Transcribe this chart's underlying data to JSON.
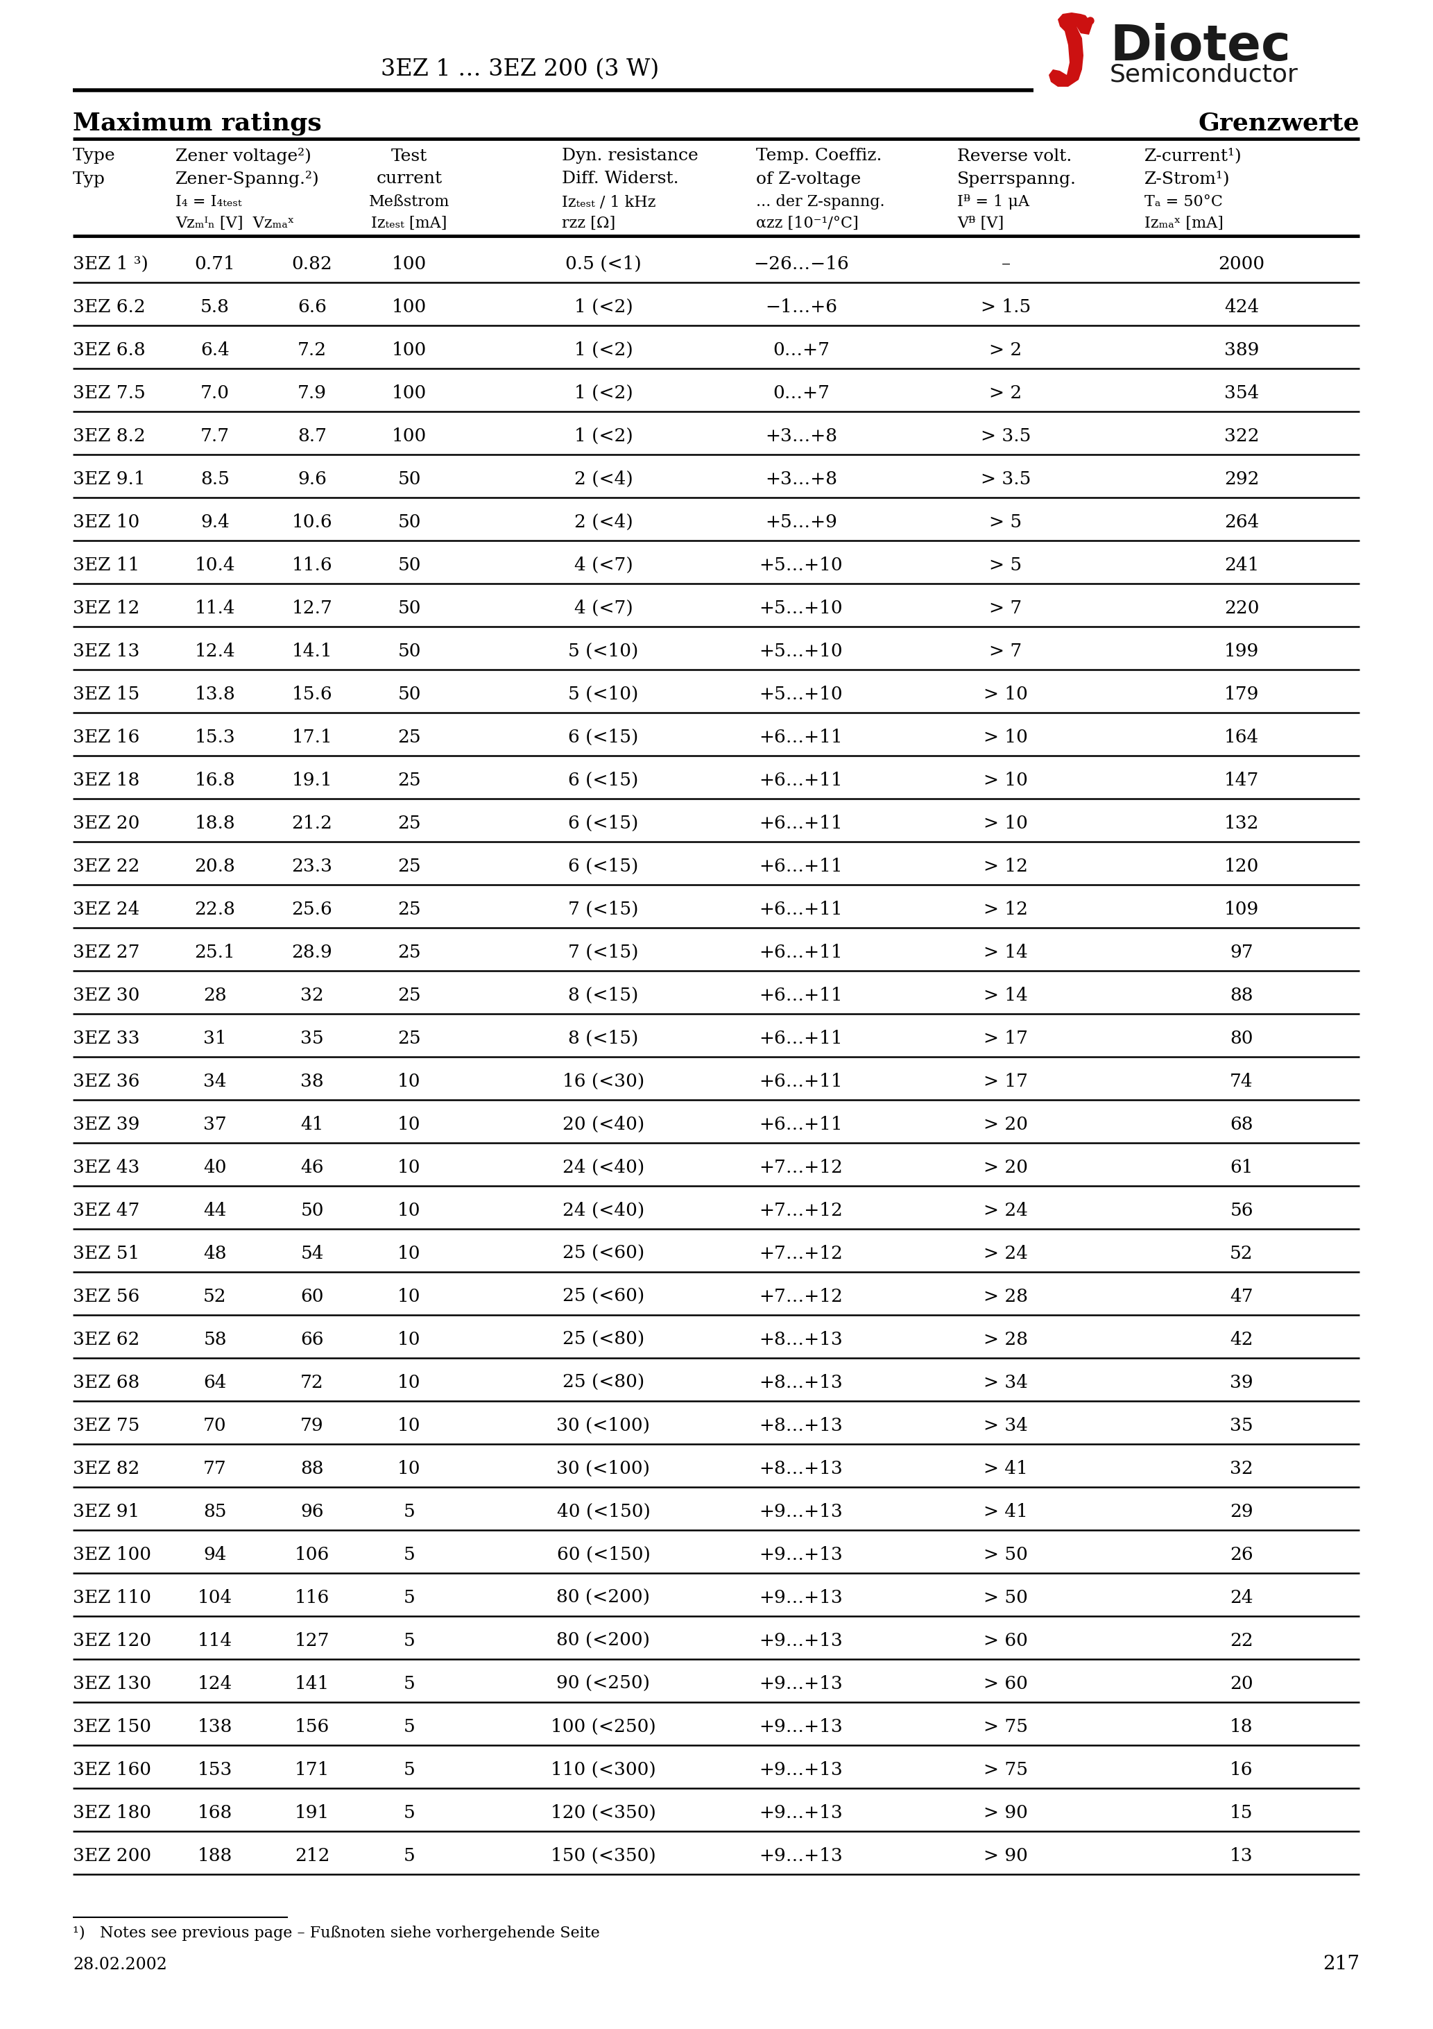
{
  "title": "3EZ 1 … 3EZ 200 (3 W)",
  "company": "Diotec",
  "subtitle": "Semiconductor",
  "section_left": "Maximum ratings",
  "section_right": "Grenzwerte",
  "rows": [
    [
      "3EZ 1 ³)",
      "0.71",
      "0.82",
      "100",
      "0.5 (<1)",
      "−26…−16",
      "–",
      "2000"
    ],
    [
      "3EZ 6.2",
      "5.8",
      "6.6",
      "100",
      "1 (<2)",
      "−1…+6",
      "> 1.5",
      "424"
    ],
    [
      "3EZ 6.8",
      "6.4",
      "7.2",
      "100",
      "1 (<2)",
      "0…+7",
      "> 2",
      "389"
    ],
    [
      "3EZ 7.5",
      "7.0",
      "7.9",
      "100",
      "1 (<2)",
      "0…+7",
      "> 2",
      "354"
    ],
    [
      "3EZ 8.2",
      "7.7",
      "8.7",
      "100",
      "1 (<2)",
      "+3…+8",
      "> 3.5",
      "322"
    ],
    [
      "3EZ 9.1",
      "8.5",
      "9.6",
      "50",
      "2 (<4)",
      "+3…+8",
      "> 3.5",
      "292"
    ],
    [
      "3EZ 10",
      "9.4",
      "10.6",
      "50",
      "2 (<4)",
      "+5…+9",
      "> 5",
      "264"
    ],
    [
      "3EZ 11",
      "10.4",
      "11.6",
      "50",
      "4 (<7)",
      "+5…+10",
      "> 5",
      "241"
    ],
    [
      "3EZ 12",
      "11.4",
      "12.7",
      "50",
      "4 (<7)",
      "+5…+10",
      "> 7",
      "220"
    ],
    [
      "3EZ 13",
      "12.4",
      "14.1",
      "50",
      "5 (<10)",
      "+5…+10",
      "> 7",
      "199"
    ],
    [
      "3EZ 15",
      "13.8",
      "15.6",
      "50",
      "5 (<10)",
      "+5…+10",
      "> 10",
      "179"
    ],
    [
      "3EZ 16",
      "15.3",
      "17.1",
      "25",
      "6 (<15)",
      "+6…+11",
      "> 10",
      "164"
    ],
    [
      "3EZ 18",
      "16.8",
      "19.1",
      "25",
      "6 (<15)",
      "+6…+11",
      "> 10",
      "147"
    ],
    [
      "3EZ 20",
      "18.8",
      "21.2",
      "25",
      "6 (<15)",
      "+6…+11",
      "> 10",
      "132"
    ],
    [
      "3EZ 22",
      "20.8",
      "23.3",
      "25",
      "6 (<15)",
      "+6…+11",
      "> 12",
      "120"
    ],
    [
      "3EZ 24",
      "22.8",
      "25.6",
      "25",
      "7 (<15)",
      "+6…+11",
      "> 12",
      "109"
    ],
    [
      "3EZ 27",
      "25.1",
      "28.9",
      "25",
      "7 (<15)",
      "+6…+11",
      "> 14",
      "97"
    ],
    [
      "3EZ 30",
      "28",
      "32",
      "25",
      "8 (<15)",
      "+6…+11",
      "> 14",
      "88"
    ],
    [
      "3EZ 33",
      "31",
      "35",
      "25",
      "8 (<15)",
      "+6…+11",
      "> 17",
      "80"
    ],
    [
      "3EZ 36",
      "34",
      "38",
      "10",
      "16 (<30)",
      "+6…+11",
      "> 17",
      "74"
    ],
    [
      "3EZ 39",
      "37",
      "41",
      "10",
      "20 (<40)",
      "+6…+11",
      "> 20",
      "68"
    ],
    [
      "3EZ 43",
      "40",
      "46",
      "10",
      "24 (<40)",
      "+7…+12",
      "> 20",
      "61"
    ],
    [
      "3EZ 47",
      "44",
      "50",
      "10",
      "24 (<40)",
      "+7…+12",
      "> 24",
      "56"
    ],
    [
      "3EZ 51",
      "48",
      "54",
      "10",
      "25 (<60)",
      "+7…+12",
      "> 24",
      "52"
    ],
    [
      "3EZ 56",
      "52",
      "60",
      "10",
      "25 (<60)",
      "+7…+12",
      "> 28",
      "47"
    ],
    [
      "3EZ 62",
      "58",
      "66",
      "10",
      "25 (<80)",
      "+8…+13",
      "> 28",
      "42"
    ],
    [
      "3EZ 68",
      "64",
      "72",
      "10",
      "25 (<80)",
      "+8…+13",
      "> 34",
      "39"
    ],
    [
      "3EZ 75",
      "70",
      "79",
      "10",
      "30 (<100)",
      "+8…+13",
      "> 34",
      "35"
    ],
    [
      "3EZ 82",
      "77",
      "88",
      "10",
      "30 (<100)",
      "+8…+13",
      "> 41",
      "32"
    ],
    [
      "3EZ 91",
      "85",
      "96",
      "5",
      "40 (<150)",
      "+9…+13",
      "> 41",
      "29"
    ],
    [
      "3EZ 100",
      "94",
      "106",
      "5",
      "60 (<150)",
      "+9…+13",
      "> 50",
      "26"
    ],
    [
      "3EZ 110",
      "104",
      "116",
      "5",
      "80 (<200)",
      "+9…+13",
      "> 50",
      "24"
    ],
    [
      "3EZ 120",
      "114",
      "127",
      "5",
      "80 (<200)",
      "+9…+13",
      "> 60",
      "22"
    ],
    [
      "3EZ 130",
      "124",
      "141",
      "5",
      "90 (<250)",
      "+9…+13",
      "> 60",
      "20"
    ],
    [
      "3EZ 150",
      "138",
      "156",
      "5",
      "100 (<250)",
      "+9…+13",
      "> 75",
      "18"
    ],
    [
      "3EZ 160",
      "153",
      "171",
      "5",
      "110 (<300)",
      "+9…+13",
      "> 75",
      "16"
    ],
    [
      "3EZ 180",
      "168",
      "191",
      "5",
      "120 (<350)",
      "+9…+13",
      "> 90",
      "15"
    ],
    [
      "3EZ 200",
      "188",
      "212",
      "5",
      "150 (<350)",
      "+9…+13",
      "> 90",
      "13"
    ]
  ],
  "footnote": "¹)   Notes see previous page – Fußnoten siehe vorhergehende Seite",
  "date": "28.02.2002",
  "page": "217",
  "bg_color": "#ffffff"
}
